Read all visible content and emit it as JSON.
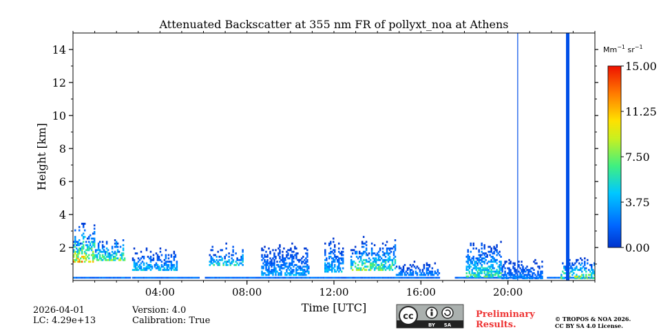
{
  "chart_data": {
    "type": "heatmap",
    "title": "Attenuated Backscatter at 355 nm FR of pollyxt_noa at Athens",
    "xlabel": "Time [UTC]",
    "ylabel": "Height [km]",
    "xlim_hours": [
      0,
      24
    ],
    "ylim_km": [
      0,
      15
    ],
    "x_tick_labels": [
      "04:00",
      "08:00",
      "12:00",
      "16:00",
      "20:00"
    ],
    "x_tick_hours": [
      4,
      8,
      12,
      16,
      20
    ],
    "y_tick_labels": [
      "2",
      "4",
      "6",
      "8",
      "10",
      "12",
      "14"
    ],
    "y_tick_values": [
      2,
      4,
      6,
      8,
      10,
      12,
      14
    ],
    "colorbar": {
      "unit_base": "Mm",
      "unit_exp1": "−1",
      "unit_mid": " sr",
      "unit_exp2": "−1",
      "range": [
        0,
        15
      ],
      "tick_labels": [
        "15.00",
        "11.25",
        "7.50",
        "3.75",
        "0.00"
      ],
      "tick_values": [
        15,
        11.25,
        7.5,
        3.75,
        0
      ],
      "colormap": "jet"
    },
    "aerosol_layers": [
      {
        "t0": 0.0,
        "t1": 1.0,
        "base_km": 1.1,
        "top_km": 3.7,
        "peak": 11
      },
      {
        "t0": 1.0,
        "t1": 2.4,
        "base_km": 1.2,
        "top_km": 3.0,
        "peak": 8
      },
      {
        "t0": 2.6,
        "t1": 4.8,
        "base_km": 0.6,
        "top_km": 2.0,
        "peak": 5
      },
      {
        "t0": 6.2,
        "t1": 7.8,
        "base_km": 0.9,
        "top_km": 2.3,
        "peak": 6
      },
      {
        "t0": 8.6,
        "t1": 10.8,
        "base_km": 0.3,
        "top_km": 2.3,
        "peak": 4
      },
      {
        "t0": 11.5,
        "t1": 12.4,
        "base_km": 0.5,
        "top_km": 2.8,
        "peak": 5
      },
      {
        "t0": 12.7,
        "t1": 14.8,
        "base_km": 0.6,
        "top_km": 2.7,
        "peak": 8
      },
      {
        "t0": 14.8,
        "t1": 17.5,
        "base_km": 0.3,
        "top_km": 1.2,
        "peak": 3
      },
      {
        "t0": 18.0,
        "t1": 19.7,
        "base_km": 0.2,
        "top_km": 2.7,
        "peak": 7
      },
      {
        "t0": 19.7,
        "t1": 21.6,
        "base_km": 0.1,
        "top_km": 1.4,
        "peak": 3
      },
      {
        "t0": 22.4,
        "t1": 24.0,
        "base_km": 0.1,
        "top_km": 1.4,
        "peak": 9
      }
    ],
    "data_gaps_hours": [
      [
        2.6,
        2.7
      ],
      [
        5.8,
        6.05
      ],
      [
        16.85,
        17.5
      ],
      [
        21.6,
        21.75
      ]
    ],
    "vertical_streaks": [
      {
        "hour": 20.45,
        "value": 1
      },
      {
        "hour": 22.75,
        "value": 1
      }
    ]
  },
  "footer": {
    "date": "2026-04-01",
    "lc": "LC: 4.29e+13",
    "version": "Version: 4.0",
    "calibration": "Calibration: True",
    "license_badge": {
      "cc": "cc",
      "by": "BY",
      "sa": "SA"
    },
    "preliminary_line1": "Preliminary",
    "preliminary_line2": "Results.",
    "copyright_line1": "© TROPOS & NOA 2026.",
    "copyright_line2": "CC BY SA 4.0 License."
  },
  "colors": {
    "preliminary": "#ee3333",
    "badge_bg": "#aab0ae",
    "badge_bar": "#222222"
  }
}
